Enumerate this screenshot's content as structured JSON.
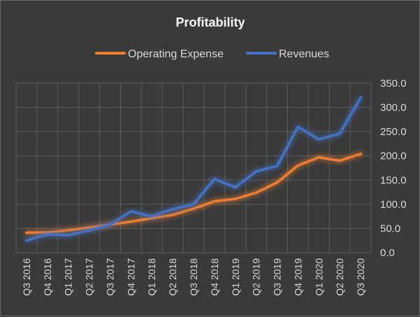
{
  "chart_data": {
    "type": "line",
    "title": "Profitability",
    "xlabel": "",
    "ylabel": "",
    "categories": [
      "Q3 2016",
      "Q4 2016",
      "Q1 2017",
      "Q2 2017",
      "Q3 2017",
      "Q4 2017",
      "Q1 2018",
      "Q2 2018",
      "Q3 2018",
      "Q4 2018",
      "Q1 2019",
      "Q2 2019",
      "Q3 2019",
      "Q4 2019",
      "Q1 2020",
      "Q2 2020",
      "Q3 2020"
    ],
    "series": [
      {
        "name": "Operating Expense",
        "color": "#ed7d31",
        "values": [
          41,
          42,
          46,
          52,
          58,
          64,
          71,
          78,
          91,
          106,
          111,
          124,
          145,
          180,
          197,
          190,
          204
        ]
      },
      {
        "name": "Revenues",
        "color": "#4472c4",
        "values": [
          25,
          38,
          36,
          46,
          58,
          85,
          75,
          90,
          100,
          152,
          135,
          168,
          179,
          260,
          234,
          246,
          320
        ]
      }
    ],
    "ylim": [
      0,
      350
    ],
    "yticks": [
      "0.0",
      "50.0",
      "100.0",
      "150.0",
      "200.0",
      "250.0",
      "300.0",
      "350.0"
    ],
    "ytick_values": [
      0,
      50,
      100,
      150,
      200,
      250,
      300,
      350
    ],
    "grid": true,
    "legend_position": "top",
    "y_axis_side": "right"
  }
}
